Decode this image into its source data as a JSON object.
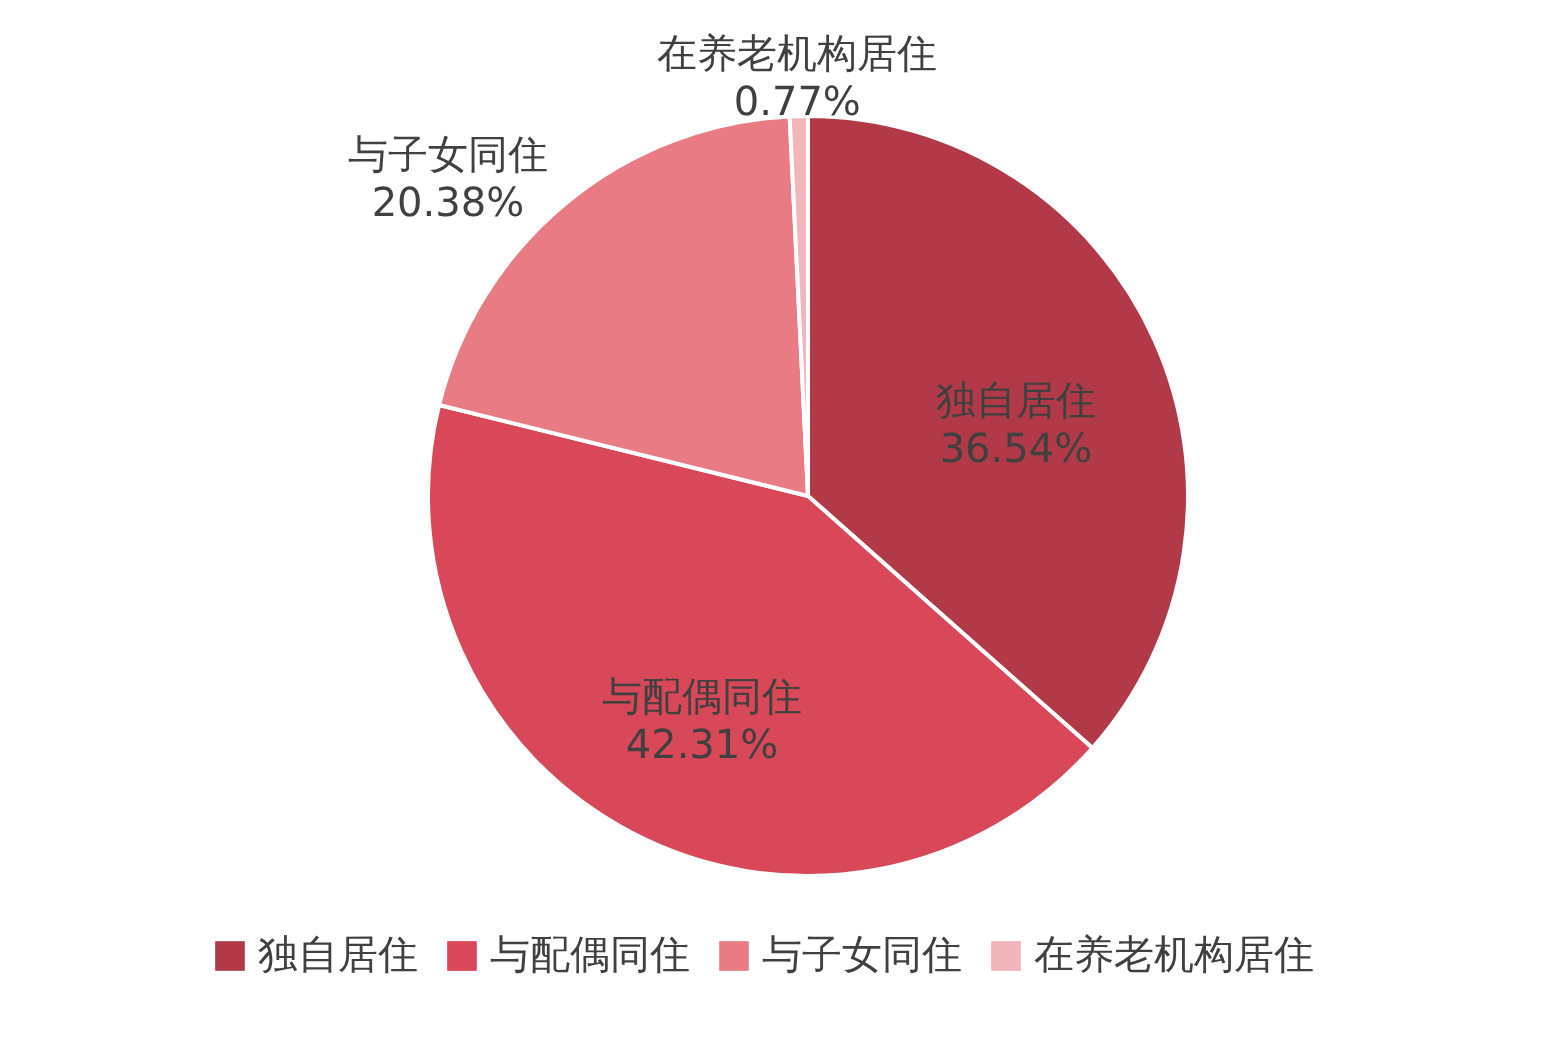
{
  "chart_data": {
    "type": "pie",
    "categories": [
      "独自居住",
      "与配偶同住",
      "与子女同住",
      "在养老机构居住"
    ],
    "values": [
      36.54,
      42.31,
      20.38,
      0.77
    ],
    "value_labels": [
      "36.54%",
      "42.31%",
      "20.38%",
      "0.77%"
    ],
    "colors": [
      "#b23a48",
      "#d84858",
      "#e97b84",
      "#f1b5ba"
    ],
    "legend": "bottom"
  }
}
